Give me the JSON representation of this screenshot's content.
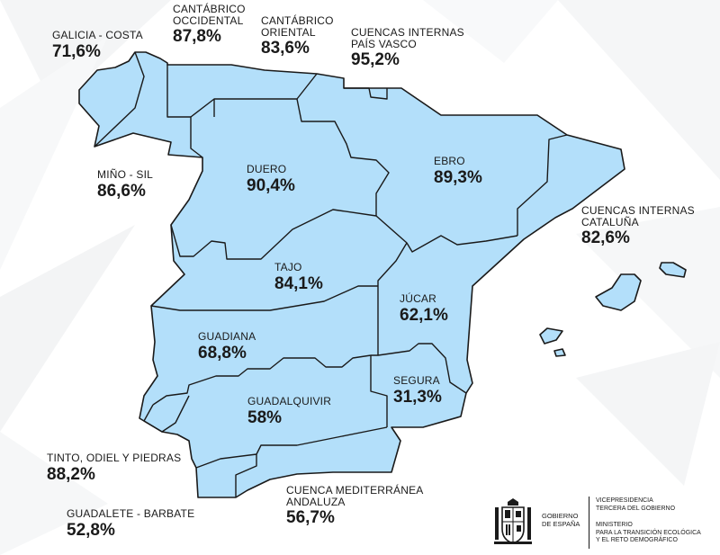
{
  "basins": [
    {
      "key": "galicia_costa",
      "name": "GALICIA - COSTA",
      "value": "71,6%"
    },
    {
      "key": "cantabrico_occidental",
      "name_lines": [
        "CANTÁBRICO",
        "OCCIDENTAL"
      ],
      "value": "87,8%"
    },
    {
      "key": "cantabrico_oriental",
      "name_lines": [
        "CANTÁBRICO",
        "ORIENTAL"
      ],
      "value": "83,6%"
    },
    {
      "key": "pais_vasco",
      "name_lines": [
        "CUENCAS INTERNAS",
        "PAÍS VASCO"
      ],
      "value": "95,2%"
    },
    {
      "key": "mino_sil",
      "name": "MIÑO - SIL",
      "value": "86,6%"
    },
    {
      "key": "duero",
      "name": "DUERO",
      "value": "90,4%"
    },
    {
      "key": "ebro",
      "name": "EBRO",
      "value": "89,3%"
    },
    {
      "key": "cataluna",
      "name_lines": [
        "CUENCAS INTERNAS",
        "CATALUÑA"
      ],
      "value": "82,6%"
    },
    {
      "key": "tajo",
      "name": "TAJO",
      "value": "84,1%"
    },
    {
      "key": "jucar",
      "name": "JÚCAR",
      "value": "62,1%"
    },
    {
      "key": "guadiana",
      "name": "GUADIANA",
      "value": "68,8%"
    },
    {
      "key": "segura",
      "name": "SEGURA",
      "value": "31,3%"
    },
    {
      "key": "guadalquivir",
      "name": "GUADALQUIVIR",
      "value": "58%"
    },
    {
      "key": "tinto_odiel",
      "name": "TINTO, ODIEL Y PIEDRAS",
      "value": "88,2%"
    },
    {
      "key": "mediterranea_andaluza",
      "name_lines": [
        "CUENCA MEDITERRÁNEA",
        "ANDALUZA"
      ],
      "value": "56,7%"
    },
    {
      "key": "guadalete_barbate",
      "name": "GUADALETE - BARBATE",
      "value": "52,8%"
    }
  ],
  "colors": {
    "basin_fill": "#b3dffa",
    "border": "#1a1a1a",
    "background": "#ffffff"
  },
  "logo": {
    "emblem_icon": "spain-coat-of-arms-icon",
    "gobierno_lines": [
      "GOBIERNO",
      "DE ESPAÑA"
    ],
    "vice_lines": [
      "VICEPRESIDENCIA",
      "TERCERA DEL GOBIERNO"
    ],
    "ministry_lines": [
      "MINISTERIO",
      "PARA LA TRANSICIÓN ECOLÓGICA",
      "Y EL RETO DEMOGRÁFICO"
    ]
  }
}
